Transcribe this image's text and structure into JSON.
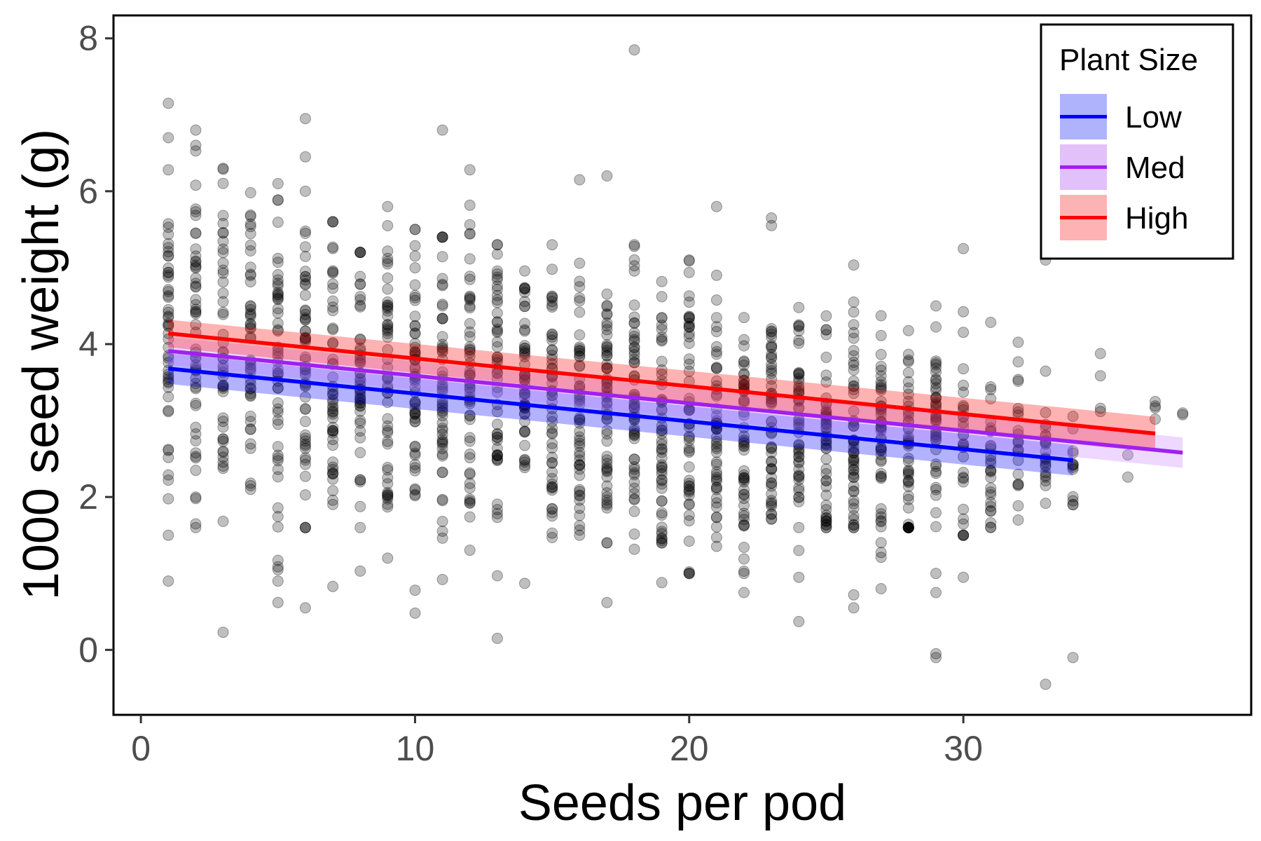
{
  "chart_data": {
    "type": "scatter",
    "xlabel": "Seeds per pod",
    "ylabel": "1000 seed weight (g)",
    "xlim": [
      -1,
      40.5
    ],
    "ylim": [
      -0.85,
      8.3
    ],
    "x_ticks": [
      0,
      10,
      20,
      30
    ],
    "y_ticks": [
      0,
      2,
      4,
      6,
      8
    ],
    "grid": false,
    "legend": {
      "title": "Plant Size",
      "position": "top-right",
      "entries": [
        {
          "name": "Low",
          "color": "#0000ff",
          "fill": "#aeb3fb"
        },
        {
          "name": "Med",
          "color": "#a020f0",
          "fill": "#e2c0f9"
        },
        {
          "name": "High",
          "color": "#ff0000",
          "fill": "#fdb3b3"
        }
      ]
    },
    "point_style": {
      "color": "#000000",
      "opacity": 0.25
    },
    "series": [
      {
        "name": "Low",
        "color": "#0000ff",
        "fill": "#0000ff",
        "x": [
          1,
          34
        ],
        "y": [
          3.68,
          2.48
        ],
        "ci_halfwidth": [
          0.2,
          0.2
        ]
      },
      {
        "name": "Med",
        "color": "#a020f0",
        "fill": "#c77dff",
        "x": [
          1,
          38
        ],
        "y": [
          3.91,
          2.58
        ],
        "ci_halfwidth": [
          0.18,
          0.2
        ]
      },
      {
        "name": "High",
        "color": "#ff0000",
        "fill": "#ff0000",
        "x": [
          1,
          37
        ],
        "y": [
          4.14,
          2.83
        ],
        "ci_halfwidth": [
          0.18,
          0.22
        ]
      }
    ],
    "columns": [
      {
        "x": 1,
        "n": 48,
        "center": 4.0,
        "min": 1.5,
        "max": 6.7
      },
      {
        "x": 2,
        "n": 52,
        "center": 4.1,
        "min": 1.6,
        "max": 6.6
      },
      {
        "x": 3,
        "n": 46,
        "center": 4.0,
        "min": 1.3,
        "max": 6.3
      },
      {
        "x": 4,
        "n": 46,
        "center": 3.9,
        "min": 2.1,
        "max": 6.3
      },
      {
        "x": 5,
        "n": 50,
        "center": 3.8,
        "min": 0.9,
        "max": 6.1
      },
      {
        "x": 6,
        "n": 52,
        "center": 3.8,
        "min": 1.6,
        "max": 6.0
      },
      {
        "x": 7,
        "n": 50,
        "center": 3.7,
        "min": 1.4,
        "max": 5.6
      },
      {
        "x": 8,
        "n": 48,
        "center": 3.6,
        "min": 1.6,
        "max": 5.2
      },
      {
        "x": 9,
        "n": 52,
        "center": 3.6,
        "min": 1.2,
        "max": 5.8
      },
      {
        "x": 10,
        "n": 54,
        "center": 3.5,
        "min": 1.4,
        "max": 5.5
      },
      {
        "x": 11,
        "n": 52,
        "center": 3.5,
        "min": 1.2,
        "max": 5.4
      },
      {
        "x": 12,
        "n": 52,
        "center": 3.4,
        "min": 1.2,
        "max": 6.0
      },
      {
        "x": 13,
        "n": 50,
        "center": 3.3,
        "min": 1.0,
        "max": 5.3
      },
      {
        "x": 14,
        "n": 50,
        "center": 3.3,
        "min": 1.4,
        "max": 5.2
      },
      {
        "x": 15,
        "n": 52,
        "center": 3.3,
        "min": 1.4,
        "max": 5.3
      },
      {
        "x": 16,
        "n": 52,
        "center": 3.2,
        "min": 1.5,
        "max": 5.5
      },
      {
        "x": 17,
        "n": 56,
        "center": 3.2,
        "min": 1.4,
        "max": 5.3
      },
      {
        "x": 18,
        "n": 56,
        "center": 3.1,
        "min": 1.2,
        "max": 5.3
      },
      {
        "x": 19,
        "n": 52,
        "center": 3.1,
        "min": 1.4,
        "max": 5.5
      },
      {
        "x": 20,
        "n": 52,
        "center": 3.0,
        "min": 1.0,
        "max": 5.1
      },
      {
        "x": 21,
        "n": 50,
        "center": 3.0,
        "min": 1.2,
        "max": 4.9
      },
      {
        "x": 22,
        "n": 52,
        "center": 2.9,
        "min": 1.0,
        "max": 5.2
      },
      {
        "x": 23,
        "n": 52,
        "center": 2.9,
        "min": 1.2,
        "max": 4.8
      },
      {
        "x": 24,
        "n": 50,
        "center": 2.9,
        "min": 1.3,
        "max": 4.7
      },
      {
        "x": 25,
        "n": 50,
        "center": 2.8,
        "min": 1.6,
        "max": 5.1
      },
      {
        "x": 26,
        "n": 52,
        "center": 2.8,
        "min": 1.6,
        "max": 5.2
      },
      {
        "x": 27,
        "n": 48,
        "center": 2.8,
        "min": 1.0,
        "max": 4.9
      },
      {
        "x": 28,
        "n": 48,
        "center": 2.7,
        "min": 1.6,
        "max": 4.8
      },
      {
        "x": 29,
        "n": 44,
        "center": 2.7,
        "min": 1.0,
        "max": 4.5
      },
      {
        "x": 30,
        "n": 30,
        "center": 2.7,
        "min": 1.5,
        "max": 4.7
      },
      {
        "x": 31,
        "n": 28,
        "center": 2.6,
        "min": 1.6,
        "max": 4.5
      },
      {
        "x": 32,
        "n": 22,
        "center": 2.6,
        "min": 1.6,
        "max": 4.5
      },
      {
        "x": 33,
        "n": 22,
        "center": 2.6,
        "min": 1.6,
        "max": 4.2
      },
      {
        "x": 34,
        "n": 12,
        "center": 2.6,
        "min": 1.9,
        "max": 3.9
      },
      {
        "x": 35,
        "n": 4,
        "center": 3.2,
        "min": 2.9,
        "max": 4.5
      },
      {
        "x": 36,
        "n": 2,
        "center": 2.5,
        "min": 1.5,
        "max": 3.5
      },
      {
        "x": 37,
        "n": 4,
        "center": 3.1,
        "min": 2.7,
        "max": 3.5
      },
      {
        "x": 38,
        "n": 2,
        "center": 3.3,
        "min": 2.8,
        "max": 3.9
      }
    ],
    "outliers": [
      {
        "x": 1,
        "y": 7.15
      },
      {
        "x": 1,
        "y": 0.9
      },
      {
        "x": 1,
        "y": 6.28
      },
      {
        "x": 2,
        "y": 6.8
      },
      {
        "x": 3,
        "y": 0.23
      },
      {
        "x": 6,
        "y": 6.95
      },
      {
        "x": 6,
        "y": 6.45
      },
      {
        "x": 6,
        "y": 0.55
      },
      {
        "x": 6,
        "y": 1.6
      },
      {
        "x": 5,
        "y": 0.62
      },
      {
        "x": 5,
        "y": 1.05
      },
      {
        "x": 7,
        "y": 0.83
      },
      {
        "x": 8,
        "y": 1.03
      },
      {
        "x": 10,
        "y": 0.48
      },
      {
        "x": 10,
        "y": 0.78
      },
      {
        "x": 11,
        "y": 6.8
      },
      {
        "x": 11,
        "y": 0.92
      },
      {
        "x": 12,
        "y": 6.28
      },
      {
        "x": 13,
        "y": 0.15
      },
      {
        "x": 13,
        "y": 0.97
      },
      {
        "x": 14,
        "y": 0.87
      },
      {
        "x": 16,
        "y": 6.15
      },
      {
        "x": 17,
        "y": 6.2
      },
      {
        "x": 17,
        "y": 0.62
      },
      {
        "x": 18,
        "y": 7.85
      },
      {
        "x": 19,
        "y": 0.88
      },
      {
        "x": 20,
        "y": 1.02
      },
      {
        "x": 21,
        "y": 5.8
      },
      {
        "x": 22,
        "y": 0.75
      },
      {
        "x": 23,
        "y": 5.65
      },
      {
        "x": 23,
        "y": 5.55
      },
      {
        "x": 24,
        "y": 0.37
      },
      {
        "x": 24,
        "y": 0.95
      },
      {
        "x": 26,
        "y": 0.55
      },
      {
        "x": 26,
        "y": 0.72
      },
      {
        "x": 27,
        "y": 0.8
      },
      {
        "x": 29,
        "y": -0.05
      },
      {
        "x": 29,
        "y": -0.1
      },
      {
        "x": 29,
        "y": 0.75
      },
      {
        "x": 30,
        "y": 5.25
      },
      {
        "x": 30,
        "y": 0.95
      },
      {
        "x": 33,
        "y": -0.45
      },
      {
        "x": 33,
        "y": 5.1
      },
      {
        "x": 34,
        "y": -0.1
      },
      {
        "x": 34,
        "y": 1.95
      }
    ]
  }
}
